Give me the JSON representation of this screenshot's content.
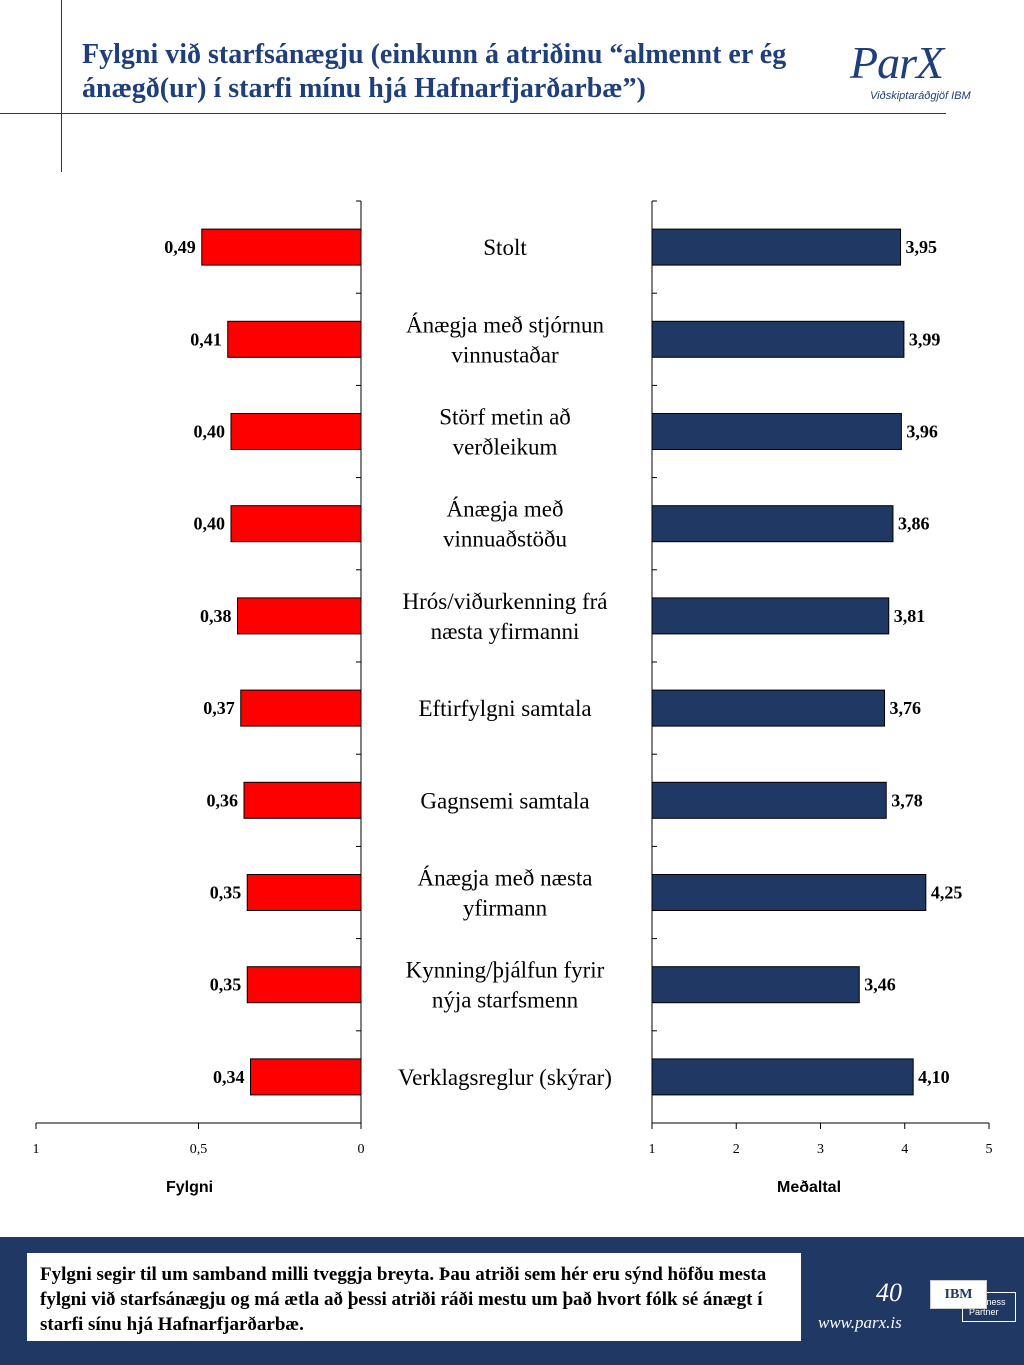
{
  "header": {
    "title": "Fylgni við starfsánægju (einkunn á atriðinu “almennt er ég ánægð(ur) í starfi mínu hjá Hafnarfjarðarbæ”)",
    "logo_text": "ParX",
    "logo_subtitle": "Viðskiptaráðgjöf IBM"
  },
  "chart_data": {
    "type": "bar",
    "orientation": "horizontal",
    "categories": [
      "Stolt",
      "Ánægja með stjórnun vinnustaðar",
      "Störf metin að verðleikum",
      "Ánægja með vinnuaðstöðu",
      "Hrós/viðurkenning frá næsta yfirmanni",
      "Eftirfylgni samtala",
      "Gagnsemi samtala",
      "Ánægja með næsta yfirmann",
      "Kynning/þjálfun fyrir nýja starfsmenn",
      "Verklagsreglur (skýrar)"
    ],
    "category_lines": [
      [
        "Stolt"
      ],
      [
        "Ánægja með stjórnun",
        "vinnustaðar"
      ],
      [
        "Störf metin að",
        "verðleikum"
      ],
      [
        "Ánægja með",
        "vinnuaðstöðu"
      ],
      [
        "Hrós/viðurkenning frá",
        "næsta yfirmanni"
      ],
      [
        "Eftirfylgni samtala"
      ],
      [
        "Gagnsemi samtala"
      ],
      [
        "Ánægja með næsta",
        "yfirmann"
      ],
      [
        "Kynning/þjálfun fyrir",
        "nýja starfsmenn"
      ],
      [
        "Verklagsreglur (skýrar)"
      ]
    ],
    "panels": [
      {
        "name": "Fylgni",
        "values": [
          0.49,
          0.41,
          0.4,
          0.4,
          0.38,
          0.37,
          0.36,
          0.35,
          0.35,
          0.34
        ],
        "labels": [
          "0,49",
          "0,41",
          "0,40",
          "0,40",
          "0,38",
          "0,37",
          "0,36",
          "0,35",
          "0,35",
          "0,34"
        ],
        "xlim": [
          1,
          0
        ],
        "ticks": [
          1,
          0.5,
          0
        ],
        "tick_labels": [
          "1",
          "0,5",
          "0"
        ],
        "color": "#ff0000"
      },
      {
        "name": "Meðaltal",
        "values": [
          3.95,
          3.99,
          3.96,
          3.86,
          3.81,
          3.76,
          3.78,
          4.25,
          3.46,
          4.1
        ],
        "labels": [
          "3,95",
          "3,99",
          "3,96",
          "3,86",
          "3,81",
          "3,76",
          "3,78",
          "4,25",
          "3,46",
          "4,10"
        ],
        "xlim": [
          1,
          5
        ],
        "ticks": [
          1,
          2,
          3,
          4,
          5
        ],
        "tick_labels": [
          "1",
          "2",
          "3",
          "4",
          "5"
        ],
        "color": "#1f3864"
      }
    ]
  },
  "footer": {
    "note": "Fylgni segir til um samband milli tveggja breyta. Þau atriði sem hér eru sýnd höfðu mesta fylgni við starfsánægju og má ætla að þessi atriði ráði mestu um það hvort fólk sé ánægt í starfi sínu hjá Hafnarfjarðarbæ.",
    "page_number": "40",
    "website": "www.parx.is",
    "ibm_logo": "IBM",
    "ibm_badge": "Business Partner"
  }
}
